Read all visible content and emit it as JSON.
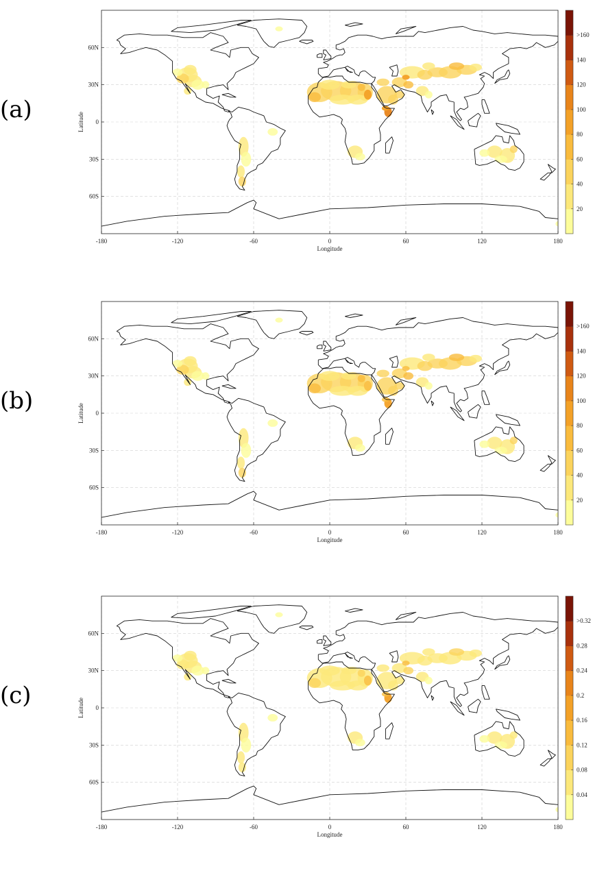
{
  "panels": [
    {
      "label": "(a)",
      "colorbar": {
        "ticks": [
          "20",
          "40",
          "60",
          "80",
          "100",
          "120",
          "140",
          ">160"
        ]
      },
      "intensity": 1.0
    },
    {
      "label": "(b)",
      "colorbar": {
        "ticks": [
          "20",
          "40",
          "60",
          "80",
          "100",
          "120",
          "140",
          ">160"
        ]
      },
      "intensity": 0.85
    },
    {
      "label": "(c)",
      "colorbar": {
        "ticks": [
          "0.04",
          "0.08",
          "0.12",
          "0.16",
          "0.2",
          "0.24",
          "0.28",
          ">0.32"
        ]
      },
      "intensity": 0.7
    }
  ],
  "axes": {
    "xlabel": "Longitude",
    "ylabel": "Latitude",
    "xticks": [
      "-180",
      "-120",
      "-60",
      "0",
      "60",
      "120",
      "180"
    ],
    "xtick_values": [
      -180,
      -120,
      -60,
      0,
      60,
      120,
      180
    ],
    "yticks": [
      "60N",
      "30N",
      "0",
      "30S",
      "60S"
    ],
    "ytick_values": [
      60,
      30,
      0,
      -30,
      -60
    ],
    "xlim": [
      -180,
      180
    ],
    "ylim": [
      -90,
      90
    ],
    "grid": true
  },
  "colors": {
    "scale": [
      "#fdfd9a",
      "#fce87a",
      "#fbd35c",
      "#f9bb3d",
      "#f3a127",
      "#e8841a",
      "#cf5a12",
      "#a8310c",
      "#7a1406"
    ],
    "coastline": "#111111"
  }
}
